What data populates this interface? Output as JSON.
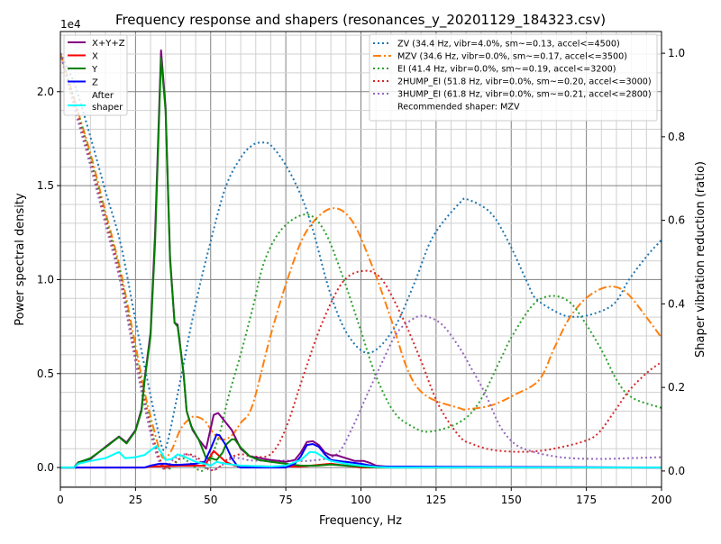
{
  "chart_data": {
    "type": "line",
    "title": "Frequency response and shapers (resonances_y_20201129_184323.csv)",
    "xlabel": "Frequency, Hz",
    "ylabel": "Power spectral density",
    "ylabel_right": "Shaper vibration reduction (ratio)",
    "y_offset_label": "1e4",
    "xlim": [
      0,
      200
    ],
    "ylim": [
      -1050,
      23200
    ],
    "ylim_right": [
      -0.039,
      1.052
    ],
    "grid": true,
    "x_ticks": [
      0,
      25,
      50,
      75,
      100,
      125,
      150,
      175,
      200
    ],
    "x_tick_labels": [
      "0",
      "25",
      "50",
      "75",
      "100",
      "125",
      "150",
      "175",
      "200"
    ],
    "y_ticks": [
      0,
      5000,
      10000,
      15000,
      20000
    ],
    "y_tick_labels": [
      "0.0",
      "0.5",
      "1.0",
      "1.5",
      "2.0"
    ],
    "y_right_ticks": [
      0,
      0.2,
      0.4,
      0.6,
      0.8,
      1.0
    ],
    "y_right_tick_labels": [
      "0.0",
      "0.2",
      "0.4",
      "0.6",
      "0.8",
      "1.0"
    ],
    "legend_left_placement": "upper-left",
    "legend_right_placement": "upper-right",
    "psd_series": [
      {
        "name": "X+Y+Z",
        "color": "#800080",
        "x": [
          0,
          4.5,
          6,
          10,
          15,
          19.5,
          22,
          25,
          27,
          28,
          30,
          31.5,
          33.5,
          35,
          36.5,
          38,
          39,
          41,
          42,
          44,
          46,
          48.5,
          51,
          52.5,
          55,
          57,
          60,
          63,
          70,
          75,
          78,
          80,
          82,
          84,
          86,
          88,
          90,
          92,
          95,
          98,
          101,
          103,
          105,
          110,
          200
        ],
        "y": [
          0,
          0,
          280,
          450,
          1100,
          1650,
          1330,
          2000,
          3100,
          4700,
          7200,
          12500,
          22200,
          19200,
          11200,
          7700,
          7600,
          5000,
          3000,
          2000,
          1500,
          1000,
          2800,
          2900,
          2400,
          2000,
          1000,
          600,
          400,
          300,
          400,
          800,
          1360,
          1400,
          1200,
          800,
          650,
          650,
          500,
          350,
          350,
          250,
          100,
          30,
          0
        ]
      },
      {
        "name": "X",
        "color": "#ff0000",
        "x": [
          0,
          28,
          30,
          40,
          48,
          51,
          53,
          55,
          58,
          70,
          80,
          90,
          95,
          100,
          200
        ],
        "y": [
          0,
          0,
          50,
          100,
          100,
          880,
          600,
          300,
          100,
          50,
          50,
          200,
          100,
          0,
          0
        ]
      },
      {
        "name": "Y",
        "color": "#008000",
        "x": [
          0,
          4.5,
          6,
          10,
          15,
          19.5,
          22,
          25,
          27,
          28,
          30,
          31.5,
          33.5,
          35,
          36.5,
          38,
          39,
          41,
          42,
          43.5,
          46,
          48.5,
          50,
          52,
          54,
          55,
          57,
          58,
          60,
          63,
          66,
          70,
          75,
          80,
          85,
          90,
          95,
          100,
          105,
          200
        ],
        "y": [
          0,
          0,
          270,
          500,
          1070,
          1630,
          1280,
          1950,
          3000,
          4600,
          7000,
          12000,
          21800,
          19000,
          11000,
          7700,
          7500,
          5000,
          3000,
          2200,
          1500,
          500,
          500,
          400,
          800,
          1200,
          1500,
          1500,
          1070,
          600,
          400,
          300,
          200,
          100,
          100,
          160,
          100,
          50,
          0,
          0
        ]
      },
      {
        "name": "Z",
        "color": "#0000ff",
        "x": [
          0,
          28,
          30,
          33,
          35,
          37,
          40,
          45,
          48,
          50,
          52,
          53,
          55,
          57,
          59,
          60,
          75,
          78,
          80,
          82,
          84,
          86,
          88,
          90,
          95,
          100,
          105,
          200
        ],
        "y": [
          0,
          0,
          100,
          200,
          200,
          150,
          150,
          200,
          300,
          1000,
          1760,
          1700,
          1200,
          500,
          50,
          0,
          0,
          200,
          600,
          1200,
          1250,
          1100,
          700,
          400,
          300,
          200,
          50,
          0
        ]
      },
      {
        "name": "After\nshaper",
        "color": "#00ffff",
        "x": [
          0,
          4.5,
          6,
          10,
          15,
          19.5,
          21.5,
          25,
          28,
          32,
          34,
          35,
          37,
          39,
          41,
          45,
          48,
          50,
          52,
          55,
          60,
          70,
          75,
          80,
          83,
          85,
          88,
          90,
          95,
          100,
          105,
          110,
          200
        ],
        "y": [
          0,
          0,
          200,
          350,
          500,
          830,
          500,
          550,
          670,
          1150,
          700,
          400,
          450,
          700,
          600,
          300,
          200,
          100,
          300,
          200,
          100,
          50,
          100,
          400,
          830,
          800,
          500,
          350,
          200,
          100,
          30,
          0,
          0
        ]
      }
    ],
    "shaper_series": [
      {
        "name": "ZV (34.4 Hz, vibr=4.0%, sm~=0.13, accel<=4500)",
        "color": "#1f77b4",
        "style": "dotted",
        "x": [
          0,
          5,
          10,
          15,
          20,
          25,
          30,
          33,
          34.4,
          36,
          40,
          45,
          50,
          55,
          60,
          63.9,
          66.9,
          70,
          75,
          80,
          83.9,
          89.9,
          95.9,
          102.9,
          110.9,
          117.9,
          123.9,
          132.9,
          135.8,
          143.3,
          149.3,
          155.3,
          158.3,
          166.3,
          171.3,
          177.3,
          184.3,
          189.3,
          195.3,
          200
        ],
        "y": [
          1.0,
          0.92,
          0.8,
          0.67,
          0.545,
          0.36,
          0.18,
          0.08,
          0.05,
          0.08,
          0.22,
          0.4,
          0.55,
          0.68,
          0.75,
          0.78,
          0.786,
          0.78,
          0.732,
          0.66,
          0.58,
          0.423,
          0.323,
          0.283,
          0.34,
          0.452,
          0.56,
          0.642,
          0.649,
          0.617,
          0.545,
          0.452,
          0.412,
          0.376,
          0.369,
          0.376,
          0.401,
          0.459,
          0.516,
          0.553
        ]
      },
      {
        "name": "MZV (34.6 Hz, vibr=0.0%, sm~=0.17, accel<=3500)",
        "color": "#ff7f0e",
        "style": "dashdot",
        "x": [
          0,
          5,
          10,
          15,
          20,
          25,
          28,
          30,
          33,
          34.6,
          37,
          40,
          43,
          45,
          48,
          51,
          54,
          57,
          60,
          63.9,
          69.9,
          75.9,
          81.9,
          89.9,
          96.9,
          103.9,
          109.9,
          115.9,
          121.9,
          132.9,
          135.3,
          143.3,
          151.3,
          159.3,
          164.3,
          169.3,
          175.3,
          182.3,
          188.3,
          195.3,
          200
        ],
        "y": [
          1.0,
          0.88,
          0.76,
          0.62,
          0.48,
          0.3,
          0.19,
          0.13,
          0.05,
          0.03,
          0.05,
          0.1,
          0.125,
          0.13,
          0.12,
          0.09,
          0.075,
          0.085,
          0.115,
          0.157,
          0.323,
          0.466,
          0.574,
          0.628,
          0.6,
          0.488,
          0.366,
          0.236,
          0.179,
          0.15,
          0.148,
          0.157,
          0.183,
          0.218,
          0.294,
          0.365,
          0.416,
          0.441,
          0.427,
          0.365,
          0.319
        ]
      },
      {
        "name": "EI (41.4 Hz, vibr=0.0%, sm~=0.19, accel<=3200)",
        "color": "#2ca02c",
        "style": "dotted",
        "x": [
          0,
          5,
          10,
          15,
          20,
          25,
          30,
          33,
          36,
          40,
          43,
          47,
          50,
          53,
          56,
          60,
          63.9,
          67.9,
          73.9,
          81.9,
          87.9,
          93.9,
          99.9,
          104.9,
          110.9,
          116.9,
          122.9,
          132.9,
          139.3,
          146.3,
          150.3,
          157.3,
          163.3,
          169.3,
          174.3,
          180.3,
          185.3,
          190.3,
          200
        ],
        "y": [
          1.0,
          0.88,
          0.75,
          0.61,
          0.47,
          0.28,
          0.11,
          0.03,
          0.005,
          0.03,
          0.02,
          0.0,
          0.03,
          0.09,
          0.18,
          0.28,
          0.387,
          0.502,
          0.581,
          0.614,
          0.574,
          0.466,
          0.337,
          0.229,
          0.142,
          0.107,
          0.094,
          0.117,
          0.164,
          0.265,
          0.323,
          0.398,
          0.419,
          0.405,
          0.358,
          0.286,
          0.215,
          0.175,
          0.151
        ]
      },
      {
        "name": "2HUMP_EI (51.8 Hz, vibr=0.0%, sm~=0.20, accel<=3000)",
        "color": "#d62728",
        "style": "dotted",
        "x": [
          0,
          5,
          10,
          15,
          20,
          25,
          30,
          33,
          35,
          38,
          42,
          46,
          49,
          52,
          56,
          60,
          63.9,
          69.9,
          74.9,
          80.9,
          86.9,
          93.9,
          100.9,
          106.9,
          113.9,
          119.9,
          125.9,
          132.9,
          137.3,
          143.3,
          151.3,
          159.3,
          167.3,
          175.3,
          179.3,
          184.3,
          189.3,
          195.3,
          200
        ],
        "y": [
          1.0,
          0.87,
          0.74,
          0.6,
          0.46,
          0.27,
          0.1,
          0.03,
          0.005,
          0.02,
          0.04,
          0.03,
          0.005,
          0.005,
          0.03,
          0.04,
          0.035,
          0.04,
          0.1,
          0.229,
          0.351,
          0.452,
          0.479,
          0.459,
          0.366,
          0.265,
          0.157,
          0.082,
          0.064,
          0.051,
          0.046,
          0.048,
          0.058,
          0.074,
          0.093,
          0.142,
          0.193,
          0.236,
          0.261
        ]
      },
      {
        "name": "3HUMP_EI (61.8 Hz, vibr=0.0%, sm~=0.21, accel<=2800)",
        "color": "#9467bd",
        "style": "dotted",
        "x": [
          0,
          5,
          10,
          15,
          20,
          25,
          30,
          33,
          35,
          38,
          42,
          46,
          50,
          53,
          57,
          60,
          63.9,
          73.9,
          83.9,
          91.9,
          96.9,
          101.9,
          106.9,
          111.9,
          116.9,
          120.9,
          126.9,
          132.9,
          136.3,
          141.3,
          146.3,
          151.3,
          157.3,
          164.3,
          171.3,
          181.3,
          191.3,
          200
        ],
        "y": [
          1.0,
          0.86,
          0.73,
          0.59,
          0.45,
          0.26,
          0.09,
          0.02,
          0.005,
          0.03,
          0.04,
          0.025,
          0.002,
          0.01,
          0.03,
          0.03,
          0.025,
          0.025,
          0.025,
          0.04,
          0.1,
          0.18,
          0.258,
          0.33,
          0.362,
          0.371,
          0.351,
          0.294,
          0.251,
          0.186,
          0.107,
          0.064,
          0.046,
          0.035,
          0.03,
          0.029,
          0.031,
          0.033
        ]
      }
    ],
    "recommended_text": "Recommended shaper: MZV"
  }
}
